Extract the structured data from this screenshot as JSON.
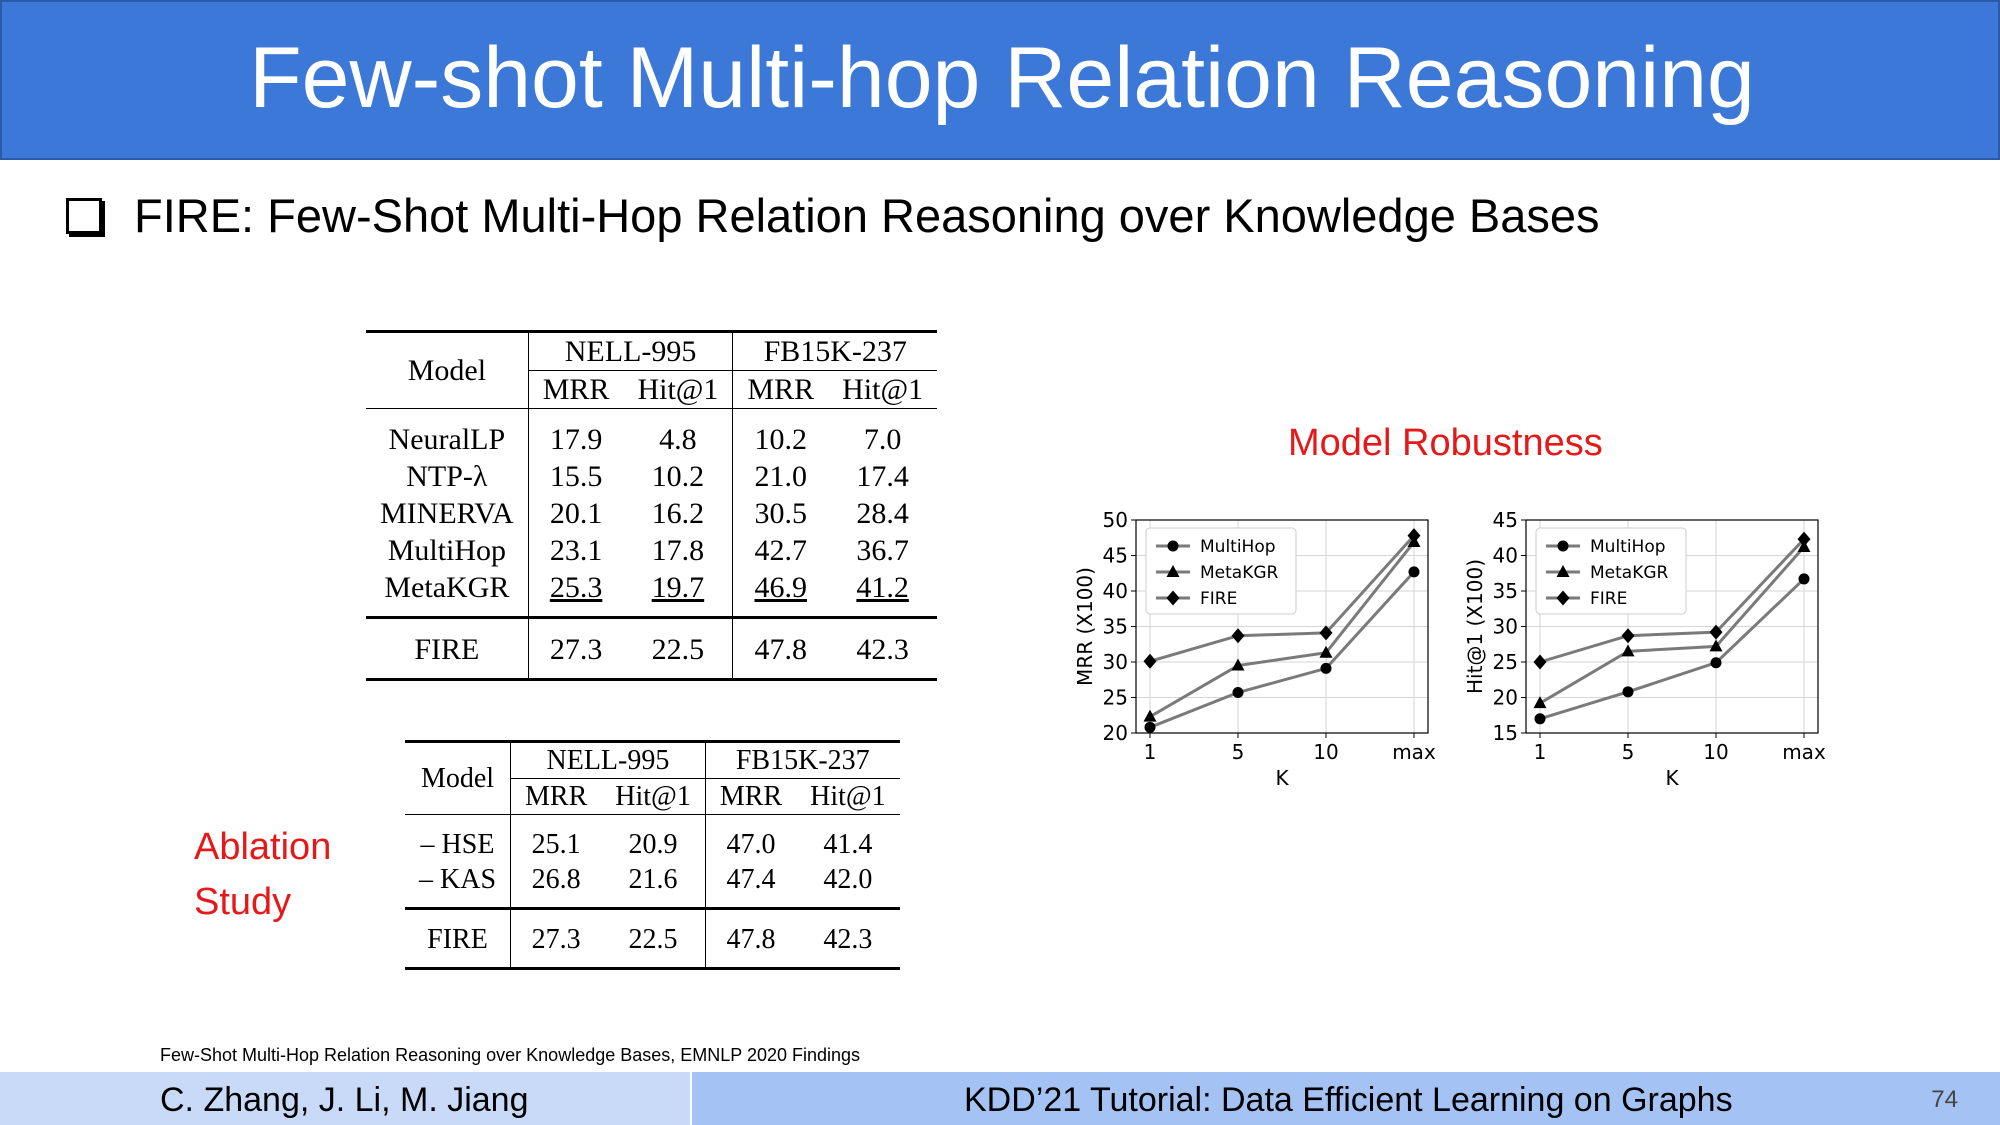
{
  "slide": {
    "title": "Few-shot Multi-hop Relation Reasoning",
    "bullet": "FIRE: Few-Shot Multi-Hop Relation Reasoning over Knowledge Bases",
    "robustness_label": "Model Robustness",
    "ablation_label_1": "Ablation",
    "ablation_label_2": "Study",
    "footnote": "Few-Shot Multi-Hop Relation Reasoning over Knowledge Bases, EMNLP 2020 Findings",
    "footer_authors": "C. Zhang, J. Li, M. Jiang",
    "footer_title": "KDD’21 Tutorial: Data Efficient Learning on Graphs",
    "page_number": "74"
  },
  "main_table": {
    "model_header": "Model",
    "dataset1": "NELL-995",
    "dataset2": "FB15K-237",
    "metrics": [
      "MRR",
      "Hit@1",
      "MRR",
      "Hit@1"
    ],
    "rows": [
      {
        "name": "NeuralLP",
        "v": [
          "17.9",
          "4.8",
          "10.2",
          "7.0"
        ]
      },
      {
        "name": "NTP-λ",
        "v": [
          "15.5",
          "10.2",
          "21.0",
          "17.4"
        ]
      },
      {
        "name": "MINERVA",
        "v": [
          "20.1",
          "16.2",
          "30.5",
          "28.4"
        ]
      },
      {
        "name": "MultiHop",
        "v": [
          "23.1",
          "17.8",
          "42.7",
          "36.7"
        ]
      },
      {
        "name": "MetaKGR",
        "v": [
          "25.3",
          "19.7",
          "46.9",
          "41.2"
        ]
      }
    ],
    "fire": {
      "name": "FIRE",
      "v": [
        "27.3",
        "22.5",
        "47.8",
        "42.3"
      ]
    }
  },
  "ablation_table": {
    "model_header": "Model",
    "dataset1": "NELL-995",
    "dataset2": "FB15K-237",
    "metrics": [
      "MRR",
      "Hit@1",
      "MRR",
      "Hit@1"
    ],
    "rows": [
      {
        "name": "– HSE",
        "v": [
          "25.1",
          "20.9",
          "47.0",
          "41.4"
        ]
      },
      {
        "name": "– KAS",
        "v": [
          "26.8",
          "21.6",
          "47.4",
          "42.0"
        ]
      }
    ],
    "fire": {
      "name": "FIRE",
      "v": [
        "27.3",
        "22.5",
        "47.8",
        "42.3"
      ]
    }
  },
  "chart_data": [
    {
      "type": "line",
      "categories": [
        "1",
        "5",
        "10",
        "max"
      ],
      "xlabel": "K",
      "ylabel": "MRR (X100)",
      "ylim": [
        20,
        50
      ],
      "yticks": [
        "20",
        "25",
        "30",
        "35",
        "40",
        "45",
        "50"
      ],
      "grid": true,
      "legend": "top-left",
      "series": [
        {
          "name": "MultiHop",
          "marker": "circle",
          "values": [
            20.8,
            25.7,
            29.1,
            42.7
          ]
        },
        {
          "name": "MetaKGR",
          "marker": "triangle",
          "values": [
            22.3,
            29.5,
            31.3,
            46.9
          ]
        },
        {
          "name": "FIRE",
          "marker": "diamond",
          "values": [
            30.1,
            33.7,
            34.1,
            47.8
          ]
        }
      ]
    },
    {
      "type": "line",
      "categories": [
        "1",
        "5",
        "10",
        "max"
      ],
      "xlabel": "K",
      "ylabel": "Hit@1 (X100)",
      "ylim": [
        15,
        45
      ],
      "yticks": [
        "15",
        "20",
        "25",
        "30",
        "35",
        "40",
        "45"
      ],
      "grid": true,
      "legend": "top-left",
      "series": [
        {
          "name": "MultiHop",
          "marker": "circle",
          "values": [
            17.0,
            20.8,
            24.9,
            36.7
          ]
        },
        {
          "name": "MetaKGR",
          "marker": "triangle",
          "values": [
            19.2,
            26.5,
            27.2,
            41.2
          ]
        },
        {
          "name": "FIRE",
          "marker": "diamond",
          "values": [
            25.0,
            28.7,
            29.2,
            42.3
          ]
        }
      ]
    }
  ]
}
